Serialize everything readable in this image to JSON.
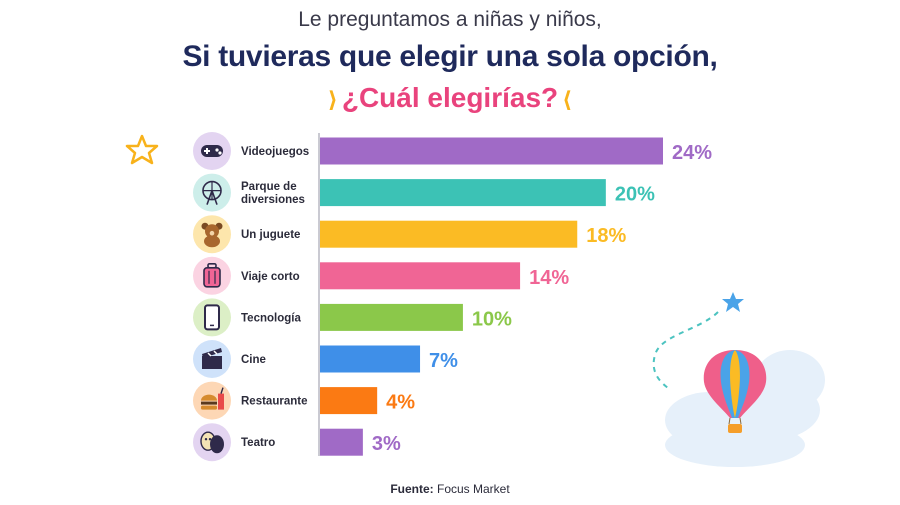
{
  "header": {
    "intro": "Le preguntamos a niñas y niños,",
    "title": "Si tuvieras que elegir una sola opción,",
    "question": "¿Cuál elegirías?"
  },
  "source": {
    "label": "Fuente:",
    "value": "Focus Market"
  },
  "chart_data": {
    "type": "bar",
    "orientation": "horizontal",
    "title": "",
    "xlabel": "",
    "ylabel": "",
    "xlim": [
      0,
      24
    ],
    "grid": false,
    "categories": [
      "Videojuegos",
      "Parque de diversiones",
      "Un juguete",
      "Viaje corto",
      "Tecnología",
      "Cine",
      "Restaurante",
      "Teatro"
    ],
    "category_lines": [
      [
        "Videojuegos"
      ],
      [
        "Parque de",
        "diversiones"
      ],
      [
        "Un juguete"
      ],
      [
        "Viaje corto"
      ],
      [
        "Tecnología"
      ],
      [
        "Cine"
      ],
      [
        "Restaurante"
      ],
      [
        "Teatro"
      ]
    ],
    "values": [
      24,
      20,
      18,
      14,
      10,
      7,
      4,
      3
    ],
    "value_labels": [
      "24%",
      "20%",
      "18%",
      "14%",
      "10%",
      "7%",
      "4%",
      "3%"
    ],
    "colors": [
      "#a06ac6",
      "#3cc2b5",
      "#fbbb24",
      "#f06595",
      "#8bc84a",
      "#3f8fe8",
      "#fb7a13",
      "#a06ac6"
    ],
    "icon_backgrounds": [
      "#e3d4f1",
      "#cdeeea",
      "#fde6ac",
      "#fbd3e2",
      "#dcefc6",
      "#cfe2fa",
      "#fdd7b5",
      "#e3d4f1"
    ],
    "icons": [
      "gamepad-icon",
      "ferris-wheel-icon",
      "teddy-bear-icon",
      "suitcase-icon",
      "smartphone-icon",
      "clapperboard-icon",
      "burger-drink-icon",
      "theater-masks-icon"
    ]
  }
}
